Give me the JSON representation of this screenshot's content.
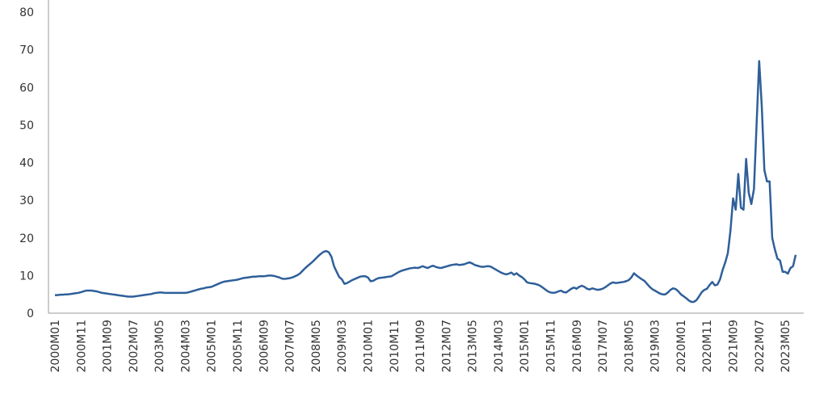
{
  "chart_data": {
    "type": "line",
    "color": "#2e5f9a",
    "ylim": [
      0,
      80
    ],
    "yticks": [
      0,
      10,
      20,
      30,
      40,
      50,
      60,
      70,
      80
    ],
    "grid": false,
    "categories": [
      "2000M01",
      null,
      null,
      null,
      null,
      null,
      null,
      null,
      null,
      null,
      "2000M11",
      null,
      null,
      null,
      null,
      null,
      null,
      null,
      null,
      null,
      "2001M09",
      null,
      null,
      null,
      null,
      null,
      null,
      null,
      null,
      null,
      "2002M07",
      null,
      null,
      null,
      null,
      null,
      null,
      null,
      null,
      null,
      "2003M05",
      null,
      null,
      null,
      null,
      null,
      null,
      null,
      null,
      null,
      "2004M03",
      null,
      null,
      null,
      null,
      null,
      null,
      null,
      null,
      null,
      "2005M01",
      null,
      null,
      null,
      null,
      null,
      null,
      null,
      null,
      null,
      "2005M11",
      null,
      null,
      null,
      null,
      null,
      null,
      null,
      null,
      null,
      "2006M09",
      null,
      null,
      null,
      null,
      null,
      null,
      null,
      null,
      null,
      "2007M07",
      null,
      null,
      null,
      null,
      null,
      null,
      null,
      null,
      null,
      "2008M05",
      null,
      null,
      null,
      null,
      null,
      null,
      null,
      null,
      null,
      "2009M03",
      null,
      null,
      null,
      null,
      null,
      null,
      null,
      null,
      null,
      "2010M01",
      null,
      null,
      null,
      null,
      null,
      null,
      null,
      null,
      null,
      "2010M11",
      null,
      null,
      null,
      null,
      null,
      null,
      null,
      null,
      null,
      "2011M09",
      null,
      null,
      null,
      null,
      null,
      null,
      null,
      null,
      null,
      "2012M07",
      null,
      null,
      null,
      null,
      null,
      null,
      null,
      null,
      null,
      "2013M05",
      null,
      null,
      null,
      null,
      null,
      null,
      null,
      null,
      null,
      "2014M03",
      null,
      null,
      null,
      null,
      null,
      null,
      null,
      null,
      null,
      "2015M01",
      null,
      null,
      null,
      null,
      null,
      null,
      null,
      null,
      null,
      "2015M11",
      null,
      null,
      null,
      null,
      null,
      null,
      null,
      null,
      null,
      "2016M09",
      null,
      null,
      null,
      null,
      null,
      null,
      null,
      null,
      null,
      "2017M07",
      null,
      null,
      null,
      null,
      null,
      null,
      null,
      null,
      null,
      "2018M05",
      null,
      null,
      null,
      null,
      null,
      null,
      null,
      null,
      null,
      "2019M03",
      null,
      null,
      null,
      null,
      null,
      null,
      null,
      null,
      null,
      "2020M01",
      null,
      null,
      null,
      null,
      null,
      null,
      null,
      null,
      null,
      "2020M11",
      null,
      null,
      null,
      null,
      null,
      null,
      null,
      null,
      null,
      "2021M09",
      null,
      null,
      null,
      null,
      null,
      null,
      null,
      null,
      null,
      "2022M07",
      null,
      null,
      null,
      null,
      null,
      null,
      null,
      null,
      null,
      "2023M05",
      null,
      null,
      null,
      null
    ],
    "values": [
      4.8,
      4.8,
      4.9,
      4.9,
      5.0,
      5.0,
      5.1,
      5.2,
      5.3,
      5.4,
      5.6,
      5.8,
      6.0,
      6.0,
      6.0,
      5.9,
      5.8,
      5.6,
      5.4,
      5.3,
      5.2,
      5.1,
      5.0,
      4.9,
      4.8,
      4.7,
      4.6,
      4.5,
      4.4,
      4.4,
      4.4,
      4.5,
      4.6,
      4.7,
      4.8,
      4.9,
      5.0,
      5.1,
      5.3,
      5.4,
      5.5,
      5.5,
      5.4,
      5.4,
      5.4,
      5.4,
      5.4,
      5.4,
      5.4,
      5.4,
      5.4,
      5.5,
      5.7,
      5.9,
      6.1,
      6.3,
      6.5,
      6.6,
      6.8,
      6.9,
      7.0,
      7.3,
      7.6,
      7.9,
      8.2,
      8.4,
      8.5,
      8.6,
      8.7,
      8.8,
      8.9,
      9.1,
      9.3,
      9.4,
      9.5,
      9.6,
      9.7,
      9.7,
      9.8,
      9.8,
      9.8,
      9.9,
      10.0,
      10.0,
      9.9,
      9.7,
      9.5,
      9.2,
      9.1,
      9.2,
      9.3,
      9.5,
      9.8,
      10.1,
      10.6,
      11.3,
      12.0,
      12.6,
      13.2,
      13.8,
      14.5,
      15.2,
      15.8,
      16.3,
      16.5,
      16.2,
      15.0,
      12.5,
      11.0,
      9.6,
      9.0,
      7.8,
      8.0,
      8.4,
      8.8,
      9.1,
      9.4,
      9.7,
      9.8,
      9.8,
      9.5,
      8.5,
      8.6,
      9.0,
      9.3,
      9.4,
      9.5,
      9.6,
      9.7,
      9.8,
      10.2,
      10.6,
      11.0,
      11.3,
      11.5,
      11.7,
      11.9,
      12.0,
      12.1,
      12.0,
      12.2,
      12.5,
      12.2,
      12.0,
      12.4,
      12.6,
      12.3,
      12.1,
      12.0,
      12.2,
      12.4,
      12.6,
      12.8,
      12.9,
      13.0,
      12.8,
      12.9,
      13.0,
      13.3,
      13.5,
      13.2,
      12.8,
      12.6,
      12.4,
      12.3,
      12.4,
      12.5,
      12.4,
      12.0,
      11.6,
      11.2,
      10.8,
      10.5,
      10.3,
      10.5,
      10.8,
      10.2,
      10.6,
      10.0,
      9.6,
      9.0,
      8.2,
      8.0,
      7.9,
      7.8,
      7.6,
      7.3,
      6.8,
      6.3,
      5.8,
      5.5,
      5.4,
      5.5,
      5.8,
      6.0,
      5.6,
      5.5,
      6.0,
      6.5,
      6.8,
      6.5,
      7.0,
      7.3,
      7.0,
      6.5,
      6.3,
      6.6,
      6.4,
      6.2,
      6.3,
      6.5,
      6.9,
      7.4,
      7.9,
      8.2,
      8.0,
      8.1,
      8.2,
      8.3,
      8.5,
      8.8,
      9.5,
      10.6,
      10.0,
      9.5,
      9.0,
      8.6,
      7.8,
      7.0,
      6.4,
      6.0,
      5.6,
      5.2,
      5.0,
      5.0,
      5.5,
      6.2,
      6.6,
      6.4,
      5.8,
      5.0,
      4.5,
      4.0,
      3.4,
      3.0,
      3.0,
      3.5,
      4.5,
      5.6,
      6.2,
      6.5,
      7.5,
      8.3,
      7.4,
      7.6,
      9.0,
      11.5,
      13.5,
      16.0,
      22.0,
      30.5,
      27.5,
      37.0,
      28.0,
      27.5,
      41.0,
      32.0,
      29.0,
      33.0,
      50.0,
      67.0,
      55.0,
      38.0,
      35.0,
      35.0,
      20.0,
      17.0,
      14.5,
      14.0,
      11.0,
      11.0,
      10.5,
      12.0,
      12.5,
      15.5
    ]
  }
}
